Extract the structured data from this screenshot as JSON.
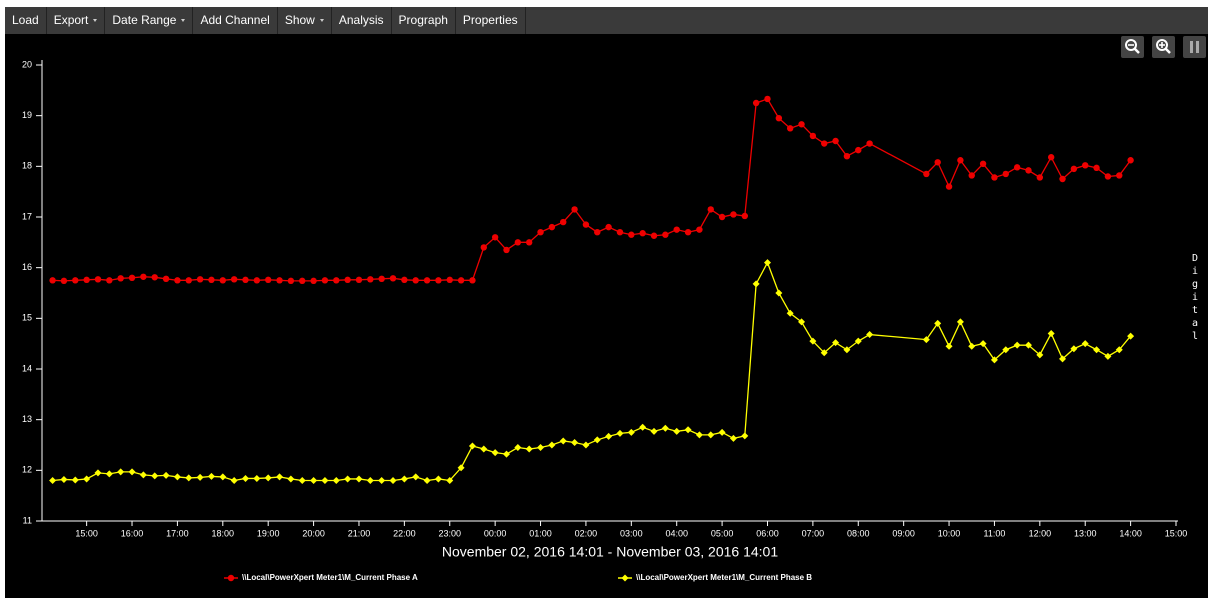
{
  "menu": [
    "Load",
    "Export",
    "Date Range",
    "Add Channel",
    "Show",
    "Analysis",
    "Prograph",
    "Properties"
  ],
  "chart_data": {
    "type": "line",
    "xlabel": "November 02, 2016 14:01 - November 03, 2016 14:01",
    "y2label": "Digital",
    "x": [
      14.25,
      14.5,
      14.75,
      15,
      15.25,
      15.5,
      15.75,
      16,
      16.25,
      16.5,
      16.75,
      17,
      17.25,
      17.5,
      17.75,
      18,
      18.25,
      18.5,
      18.75,
      19,
      19.25,
      19.5,
      19.75,
      20,
      20.25,
      20.5,
      20.75,
      21,
      21.25,
      21.5,
      21.75,
      22,
      22.25,
      22.5,
      22.75,
      23,
      23.25,
      23.5,
      23.75,
      24,
      24.25,
      24.5,
      24.75,
      25,
      25.25,
      25.5,
      25.75,
      26,
      26.25,
      26.5,
      26.75,
      27,
      27.25,
      27.5,
      27.75,
      28,
      28.25,
      28.5,
      28.75,
      29,
      29.25,
      29.5,
      29.75,
      30,
      30.25,
      30.5,
      30.75,
      31,
      31.25,
      31.5,
      31.75,
      32,
      32.25,
      33.5,
      33.75,
      34,
      34.25,
      34.5,
      34.75,
      35,
      35.25,
      35.5,
      35.75,
      36,
      36.25,
      36.5,
      36.75,
      37,
      37.25,
      37.5,
      37.75,
      38
    ],
    "xlim": [
      14.0167,
      39
    ],
    "xticks": [
      {
        "value": 15,
        "label": "15:00"
      },
      {
        "value": 16,
        "label": "16:00"
      },
      {
        "value": 17,
        "label": "17:00"
      },
      {
        "value": 18,
        "label": "18:00"
      },
      {
        "value": 19,
        "label": "19:00"
      },
      {
        "value": 20,
        "label": "20:00"
      },
      {
        "value": 21,
        "label": "21:00"
      },
      {
        "value": 22,
        "label": "22:00"
      },
      {
        "value": 23,
        "label": "23:00"
      },
      {
        "value": 24,
        "label": "00:00"
      },
      {
        "value": 25,
        "label": "01:00"
      },
      {
        "value": 26,
        "label": "02:00"
      },
      {
        "value": 27,
        "label": "03:00"
      },
      {
        "value": 28,
        "label": "04:00"
      },
      {
        "value": 29,
        "label": "05:00"
      },
      {
        "value": 30,
        "label": "06:00"
      },
      {
        "value": 31,
        "label": "07:00"
      },
      {
        "value": 32,
        "label": "08:00"
      },
      {
        "value": 33,
        "label": "09:00"
      },
      {
        "value": 34,
        "label": "10:00"
      },
      {
        "value": 35,
        "label": "11:00"
      },
      {
        "value": 36,
        "label": "12:00"
      },
      {
        "value": 37,
        "label": "13:00"
      },
      {
        "value": 38,
        "label": "14:00"
      },
      {
        "value": 39,
        "label": "15:00"
      }
    ],
    "ylim": [
      11,
      20
    ],
    "yticks": [
      11,
      12,
      13,
      14,
      15,
      16,
      17,
      18,
      19,
      20
    ],
    "grid": false,
    "series": [
      {
        "name": "\\\\Local\\PowerXpert Meter1\\M_Current Phase A",
        "color": "#ee0000",
        "marker": "circle",
        "values": [
          15.75,
          15.74,
          15.75,
          15.76,
          15.77,
          15.75,
          15.79,
          15.8,
          15.82,
          15.81,
          15.78,
          15.75,
          15.75,
          15.77,
          15.76,
          15.75,
          15.77,
          15.76,
          15.75,
          15.76,
          15.75,
          15.74,
          15.74,
          15.74,
          15.75,
          15.75,
          15.76,
          15.76,
          15.77,
          15.78,
          15.79,
          15.76,
          15.75,
          15.75,
          15.75,
          15.76,
          15.75,
          15.75,
          16.4,
          16.6,
          16.35,
          16.5,
          16.5,
          16.7,
          16.8,
          16.9,
          17.15,
          16.85,
          16.7,
          16.8,
          16.7,
          16.65,
          16.68,
          16.63,
          16.65,
          16.75,
          16.7,
          16.75,
          17.15,
          17.0,
          17.05,
          17.02,
          19.25,
          19.33,
          18.95,
          18.75,
          18.83,
          18.6,
          18.45,
          18.5,
          18.2,
          18.32,
          18.45,
          17.85,
          18.08,
          17.6,
          18.12,
          17.82,
          18.05,
          17.78,
          17.85,
          17.98,
          17.92,
          17.78,
          18.18,
          17.75,
          17.95,
          18.02,
          17.97,
          17.8,
          17.82,
          18.12
        ]
      },
      {
        "name": "\\\\Local\\PowerXpert Meter1\\M_Current Phase B",
        "color": "#ffff00",
        "marker": "diamond",
        "values": [
          11.8,
          11.82,
          11.81,
          11.83,
          11.95,
          11.93,
          11.97,
          11.97,
          11.91,
          11.89,
          11.9,
          11.87,
          11.85,
          11.86,
          11.88,
          11.87,
          11.8,
          11.84,
          11.84,
          11.85,
          11.87,
          11.83,
          11.8,
          11.8,
          11.8,
          11.8,
          11.83,
          11.83,
          11.8,
          11.8,
          11.8,
          11.83,
          11.87,
          11.8,
          11.83,
          11.8,
          12.05,
          12.48,
          12.42,
          12.35,
          12.32,
          12.45,
          12.42,
          12.45,
          12.5,
          12.58,
          12.55,
          12.5,
          12.6,
          12.67,
          12.73,
          12.75,
          12.85,
          12.77,
          12.83,
          12.77,
          12.8,
          12.7,
          12.7,
          12.75,
          12.63,
          12.68,
          15.68,
          16.1,
          15.5,
          15.1,
          14.93,
          14.55,
          14.32,
          14.52,
          14.38,
          14.55,
          14.68,
          14.58,
          14.9,
          14.45,
          14.93,
          14.45,
          14.5,
          14.18,
          14.38,
          14.47,
          14.47,
          14.28,
          14.7,
          14.2,
          14.4,
          14.5,
          14.38,
          14.25,
          14.38,
          14.65
        ]
      }
    ]
  }
}
